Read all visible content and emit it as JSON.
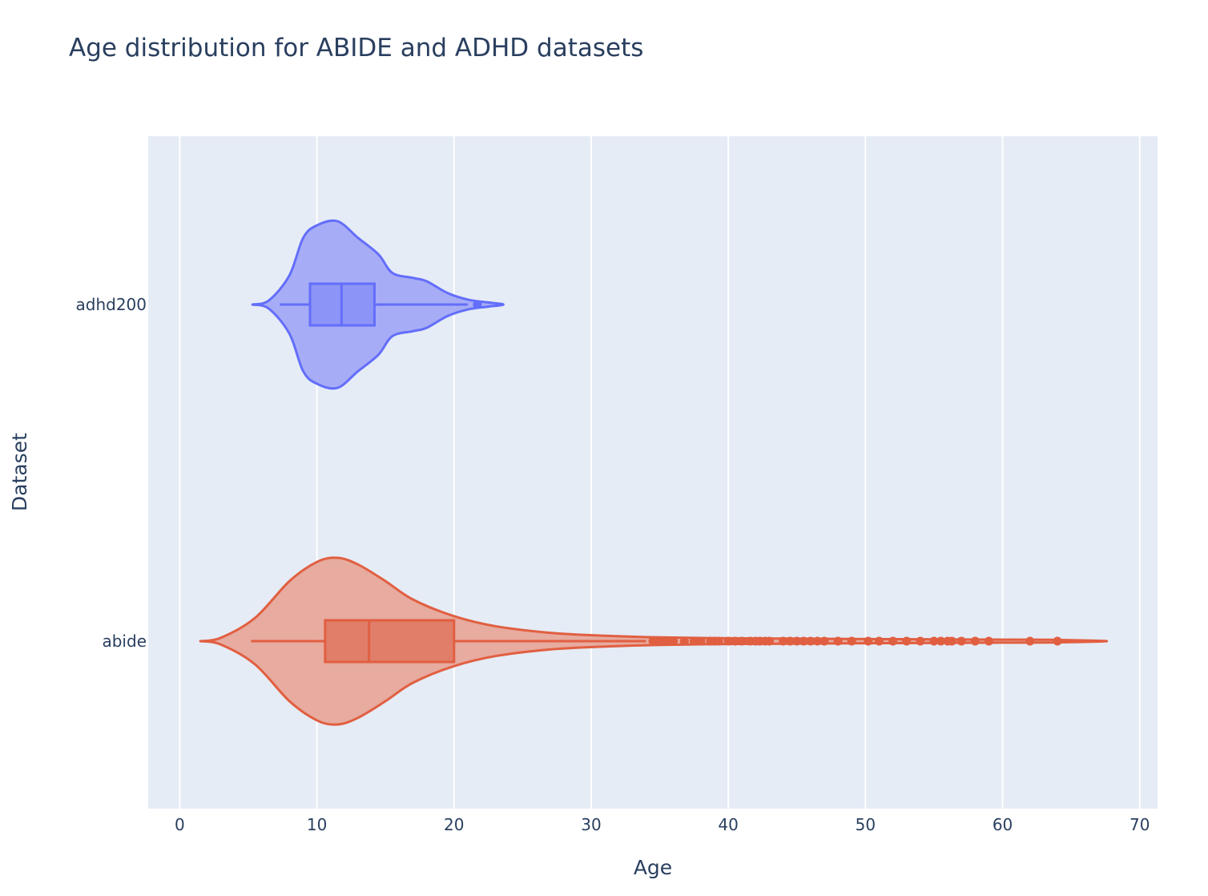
{
  "chart_data": {
    "type": "violin",
    "title": "Age distribution for ABIDE and ADHD datasets",
    "xlabel": "Age",
    "ylabel": "Dataset",
    "xlim": [
      -2.3,
      71.3
    ],
    "x_ticks": [
      0,
      10,
      20,
      30,
      40,
      50,
      60,
      70
    ],
    "categories": [
      "adhd200",
      "abide"
    ],
    "grid": true,
    "legend": "none",
    "plot_background": "#e5ecf6",
    "series": [
      {
        "category": "adhd200",
        "color": "#636efa",
        "fill": "#a3a9f6",
        "box_fill": "#8c94f7",
        "min": 7.3,
        "q1": 9.5,
        "median": 11.8,
        "q3": 14.2,
        "upper_fence": 21.0,
        "outliers": [
          21.7
        ],
        "density": [
          [
            5.3,
            0.0
          ],
          [
            6.5,
            0.05
          ],
          [
            8.0,
            0.35
          ],
          [
            9.0,
            0.8
          ],
          [
            10.0,
            0.95
          ],
          [
            11.5,
            1.0
          ],
          [
            13.0,
            0.8
          ],
          [
            14.5,
            0.6
          ],
          [
            15.5,
            0.38
          ],
          [
            17.0,
            0.32
          ],
          [
            18.0,
            0.28
          ],
          [
            19.5,
            0.14
          ],
          [
            21.0,
            0.06
          ],
          [
            22.5,
            0.025
          ],
          [
            23.6,
            0.0
          ]
        ]
      },
      {
        "category": "abide",
        "color": "#e15f41",
        "fill": "#e7a89a",
        "box_fill": "#e07e6a",
        "min": 5.2,
        "q1": 10.6,
        "median": 13.8,
        "q3": 20.0,
        "upper_fence": 34.0,
        "outliers": [
          34.5,
          35.0,
          35.5,
          36.0,
          36.8,
          37.5,
          38.0,
          38.7,
          39.0,
          39.3,
          40.0,
          40.5,
          41.0,
          41.6,
          42.0,
          42.3,
          42.7,
          43.0,
          44.0,
          44.5,
          45.0,
          45.5,
          46.0,
          46.5,
          47.0,
          48.0,
          49.0,
          50.2,
          51.0,
          52.0,
          53.0,
          54.0,
          55.0,
          55.5,
          56.0,
          56.3,
          57.0,
          58.0,
          59.0,
          62.0,
          64.0
        ],
        "density": [
          [
            1.5,
            0.0
          ],
          [
            3.0,
            0.04
          ],
          [
            5.5,
            0.28
          ],
          [
            8.0,
            0.72
          ],
          [
            10.0,
            0.95
          ],
          [
            11.5,
            1.0
          ],
          [
            13.0,
            0.92
          ],
          [
            15.0,
            0.72
          ],
          [
            17.0,
            0.5
          ],
          [
            20.0,
            0.3
          ],
          [
            23.0,
            0.18
          ],
          [
            27.0,
            0.1
          ],
          [
            31.0,
            0.065
          ],
          [
            35.0,
            0.045
          ],
          [
            40.0,
            0.035
          ],
          [
            45.0,
            0.03
          ],
          [
            50.0,
            0.025
          ],
          [
            55.0,
            0.022
          ],
          [
            60.0,
            0.018
          ],
          [
            64.0,
            0.015
          ],
          [
            67.6,
            0.0
          ]
        ]
      }
    ]
  }
}
